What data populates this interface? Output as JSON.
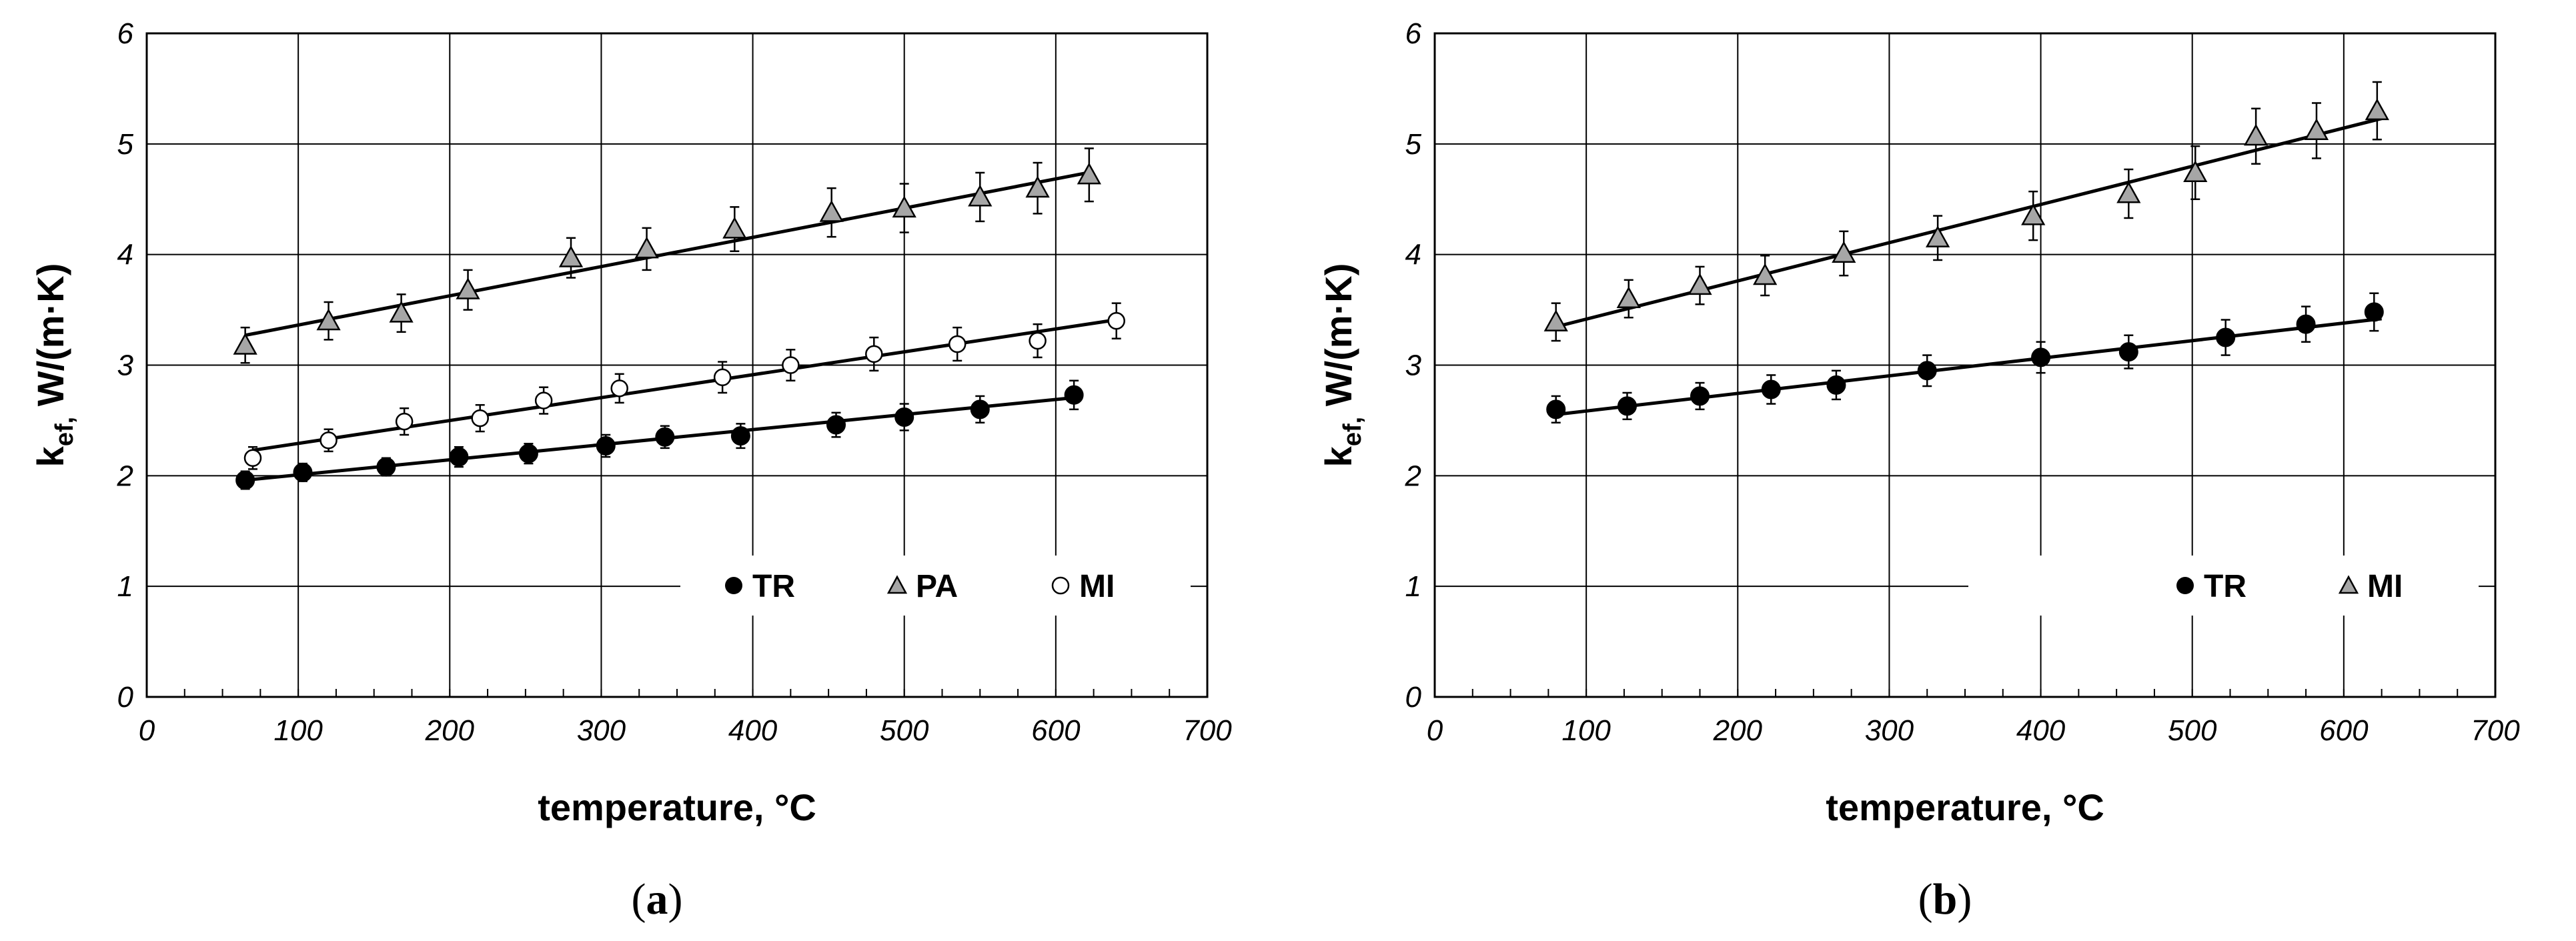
{
  "chart_data": [
    {
      "type": "scatter",
      "panel": "a",
      "caption": {
        "open": "(",
        "letter": "a",
        "close": ")"
      },
      "xlabel": "temperature, °C",
      "ylabel_main": "k",
      "ylabel_sub": "ef,",
      "ylabel_rest": " W/(m·K)",
      "xlim": [
        0,
        700
      ],
      "ylim": [
        0,
        6
      ],
      "xticks": [
        0,
        100,
        200,
        300,
        400,
        500,
        600,
        700
      ],
      "yticks": [
        0,
        1,
        2,
        3,
        4,
        5,
        6
      ],
      "xtick_labels": [
        "0",
        "100",
        "200",
        "300",
        "400",
        "500",
        "600",
        "700"
      ],
      "ytick_labels": [
        "0",
        "1",
        "2",
        "3",
        "4",
        "5",
        "6"
      ],
      "grid": true,
      "legend_position": "bottom-right",
      "series": [
        {
          "name": "PA",
          "marker": "triangle",
          "color": "#a6a6a6",
          "x": [
            65,
            120,
            168,
            212,
            280,
            330,
            388,
            452,
            500,
            550,
            588,
            622
          ],
          "y": [
            3.18,
            3.4,
            3.47,
            3.68,
            3.97,
            4.05,
            4.23,
            4.38,
            4.42,
            4.52,
            4.6,
            4.72
          ],
          "err": [
            0.16,
            0.17,
            0.17,
            0.18,
            0.18,
            0.19,
            0.2,
            0.22,
            0.22,
            0.22,
            0.23,
            0.24
          ],
          "fit": [
            [
              65,
              3.27
            ],
            [
              625,
              4.75
            ]
          ]
        },
        {
          "name": "MI",
          "marker": "circle-open",
          "color": "#ffffff",
          "x": [
            70,
            120,
            170,
            220,
            262,
            312,
            380,
            425,
            480,
            535,
            588,
            640
          ],
          "y": [
            2.16,
            2.32,
            2.49,
            2.52,
            2.68,
            2.79,
            2.89,
            3.0,
            3.1,
            3.19,
            3.22,
            3.4
          ],
          "err": [
            0.1,
            0.1,
            0.12,
            0.12,
            0.12,
            0.13,
            0.14,
            0.14,
            0.15,
            0.15,
            0.15,
            0.16
          ],
          "fit": [
            [
              70,
              2.23
            ],
            [
              640,
              3.41
            ]
          ]
        },
        {
          "name": "TR",
          "marker": "circle-filled",
          "color": "#000000",
          "x": [
            65,
            103,
            158,
            206,
            252,
            303,
            342,
            392,
            455,
            500,
            550,
            612
          ],
          "y": [
            1.96,
            2.03,
            2.08,
            2.17,
            2.2,
            2.27,
            2.35,
            2.36,
            2.46,
            2.53,
            2.6,
            2.73
          ],
          "err": [
            0.08,
            0.08,
            0.08,
            0.09,
            0.09,
            0.1,
            0.1,
            0.11,
            0.11,
            0.12,
            0.12,
            0.13
          ],
          "fit": [
            [
              65,
              1.96
            ],
            [
              615,
              2.71
            ]
          ]
        }
      ],
      "legend": [
        "TR",
        "PA",
        "MI"
      ]
    },
    {
      "type": "scatter",
      "panel": "b",
      "caption": {
        "open": "(",
        "letter": "b",
        "close": ")"
      },
      "xlabel": "temperature, °C",
      "ylabel_main": "k",
      "ylabel_sub": "ef,",
      "ylabel_rest": " W/(m·K)",
      "xlim": [
        0,
        700
      ],
      "ylim": [
        0,
        6
      ],
      "xticks": [
        0,
        100,
        200,
        300,
        400,
        500,
        600,
        700
      ],
      "yticks": [
        0,
        1,
        2,
        3,
        4,
        5,
        6
      ],
      "xtick_labels": [
        "0",
        "100",
        "200",
        "300",
        "400",
        "500",
        "600",
        "700"
      ],
      "ytick_labels": [
        "0",
        "1",
        "2",
        "3",
        "4",
        "5",
        "6"
      ],
      "grid": true,
      "legend_position": "bottom-right",
      "series": [
        {
          "name": "MI",
          "marker": "triangle",
          "color": "#a6a6a6",
          "x": [
            80,
            128,
            175,
            218,
            270,
            332,
            395,
            458,
            502,
            542,
            582,
            622
          ],
          "y": [
            3.39,
            3.6,
            3.72,
            3.81,
            4.01,
            4.15,
            4.35,
            4.55,
            4.74,
            5.07,
            5.12,
            5.3
          ],
          "err": [
            0.17,
            0.17,
            0.17,
            0.18,
            0.2,
            0.2,
            0.22,
            0.22,
            0.24,
            0.25,
            0.25,
            0.26
          ],
          "fit": [
            [
              78,
              3.34
            ],
            [
              625,
              5.23
            ]
          ]
        },
        {
          "name": "TR",
          "marker": "circle-filled",
          "color": "#000000",
          "x": [
            80,
            127,
            175,
            222,
            265,
            325,
            400,
            458,
            522,
            575,
            620
          ],
          "y": [
            2.6,
            2.63,
            2.72,
            2.78,
            2.82,
            2.95,
            3.07,
            3.12,
            3.25,
            3.37,
            3.48
          ],
          "err": [
            0.12,
            0.12,
            0.12,
            0.13,
            0.13,
            0.14,
            0.14,
            0.15,
            0.16,
            0.16,
            0.17
          ],
          "fit": [
            [
              78,
              2.55
            ],
            [
              625,
              3.42
            ]
          ]
        }
      ],
      "legend": [
        "TR",
        "MI"
      ]
    }
  ]
}
